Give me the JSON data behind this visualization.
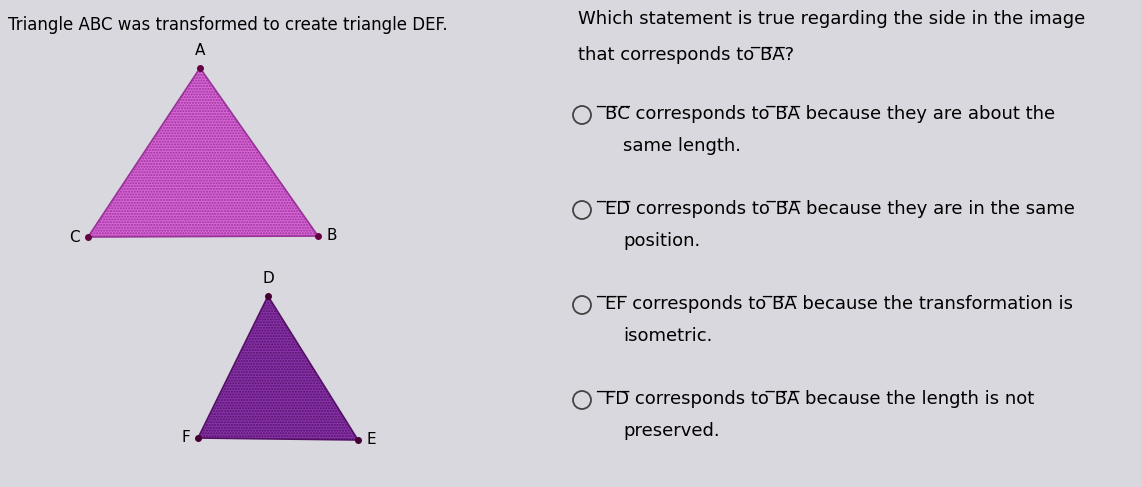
{
  "bg_color": "#d8d8de",
  "left_title": "Triangle ABC was transformed to create triangle DEF.",
  "triangle_ABC": {
    "A": [
      0.38,
      0.82
    ],
    "B": [
      0.5,
      0.52
    ],
    "C": [
      0.18,
      0.52
    ],
    "fill_color": "#d966d6",
    "edge_color": "#993399",
    "dot_color": "#660044"
  },
  "triangle_DEF": {
    "D": [
      0.36,
      0.38
    ],
    "E": [
      0.47,
      0.12
    ],
    "F": [
      0.24,
      0.17
    ],
    "fill_color": "#8833aa",
    "edge_color": "#551166",
    "dot_color": "#440033"
  },
  "label_fontsize": 11,
  "title_fontsize": 12,
  "question_fontsize": 13,
  "option_fontsize": 13,
  "question_line1": "Which statement is true regarding the side in the image",
  "question_line2": "that corresponds to ̅B̅A̅?",
  "options": [
    [
      "̅B̅C̅ corresponds to ̅B̅A̅ because they are about the",
      "same length."
    ],
    [
      "̅E̅D̅ corresponds to ̅B̅A̅ because they are in the same",
      "position."
    ],
    [
      "̅E̅F̅ corresponds to ̅B̅A̅ because the transformation is",
      "isometric."
    ],
    [
      "̅F̅D̅ corresponds to ̅B̅A̅ because the length is not",
      "preserved."
    ]
  ]
}
